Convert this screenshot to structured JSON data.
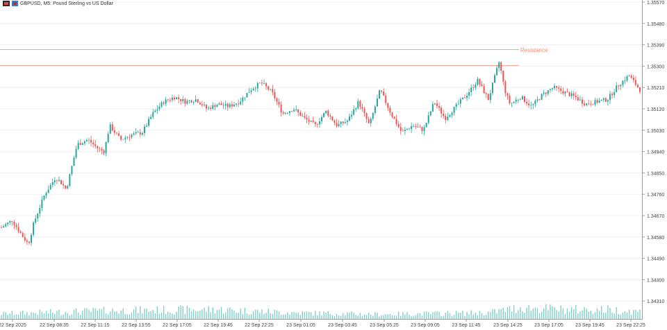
{
  "header": {
    "symbol": "GBPUSD",
    "timeframe": "M5",
    "description": "Pound Sterling vs US Dollar",
    "full_title": "GBPUSD, M5:  Pound Sterling vs US Dollar"
  },
  "annotation": {
    "text": "Resistance",
    "color": "#f08a78"
  },
  "colors": {
    "bull": "#26a69a",
    "bear": "#ef5350",
    "volume": "#7fd1c8",
    "grid": "#efefef",
    "resistance": "#f4a89a"
  },
  "chart_data": {
    "type": "candlestick",
    "symbol": "GBPUSD",
    "timeframe": "M5",
    "y_axis": {
      "range": [
        1.3423,
        1.3557
      ],
      "tick_labels": [
        "1.35570",
        "1.35480",
        "1.35390",
        "1.35300",
        "1.35210",
        "1.35120",
        "1.35030",
        "1.34940",
        "1.34850",
        "1.34760",
        "1.34670",
        "1.34580",
        "1.34490",
        "1.34400",
        "1.34310"
      ]
    },
    "x_axis": {
      "tick_labels": [
        "22 Sep 2025",
        "22 Sep 08:35",
        "22 Sep 11:15",
        "22 Sep 13:55",
        "22 Sep 17:05",
        "22 Sep 19:45",
        "22 Sep 22:25",
        "23 Sep 01:05",
        "23 Sep 03:45",
        "23 Sep 05:25",
        "23 Sep 09:05",
        "23 Sep 11:45",
        "23 Sep 14:25",
        "23 Sep 17:05",
        "23 Sep 19:45",
        "23 Sep 22:25"
      ]
    },
    "resistance_levels": [
      1.3537,
      1.35305
    ],
    "price_path": [
      [
        0,
        1.3462
      ],
      [
        1,
        1.3465
      ],
      [
        2,
        1.3458
      ],
      [
        2.5,
        1.3455
      ],
      [
        3,
        1.3464
      ],
      [
        4,
        1.3476
      ],
      [
        5,
        1.3483
      ],
      [
        5.5,
        1.3481
      ],
      [
        6,
        1.3478
      ],
      [
        7,
        1.3497
      ],
      [
        8,
        1.3499
      ],
      [
        9,
        1.3495
      ],
      [
        9.5,
        1.3494
      ],
      [
        10,
        1.3505
      ],
      [
        11,
        1.3499
      ],
      [
        12,
        1.3501
      ],
      [
        13,
        1.3502
      ],
      [
        14,
        1.351
      ],
      [
        15,
        1.3515
      ],
      [
        16,
        1.3517
      ],
      [
        17,
        1.3515
      ],
      [
        18,
        1.3516
      ],
      [
        19,
        1.3512
      ],
      [
        20,
        1.3514
      ],
      [
        21,
        1.3513
      ],
      [
        22,
        1.3515
      ],
      [
        23,
        1.352
      ],
      [
        24,
        1.3523
      ],
      [
        25,
        1.3519
      ],
      [
        26,
        1.351
      ],
      [
        27,
        1.3512
      ],
      [
        28,
        1.3508
      ],
      [
        29,
        1.3505
      ],
      [
        30,
        1.3511
      ],
      [
        31,
        1.3505
      ],
      [
        32,
        1.3507
      ],
      [
        33,
        1.3515
      ],
      [
        34,
        1.3505
      ],
      [
        35,
        1.352
      ],
      [
        36,
        1.351
      ],
      [
        37,
        1.3502
      ],
      [
        38,
        1.3505
      ],
      [
        39,
        1.3503
      ],
      [
        40,
        1.3515
      ],
      [
        41,
        1.3508
      ],
      [
        42,
        1.3513
      ],
      [
        43,
        1.3518
      ],
      [
        44,
        1.3524
      ],
      [
        45,
        1.3516
      ],
      [
        46,
        1.3532
      ],
      [
        46.5,
        1.352
      ],
      [
        47,
        1.3514
      ],
      [
        48,
        1.3517
      ],
      [
        49,
        1.3513
      ],
      [
        50,
        1.3518
      ],
      [
        51,
        1.3521
      ],
      [
        52,
        1.3519
      ],
      [
        53,
        1.3517
      ],
      [
        54,
        1.3514
      ],
      [
        55,
        1.3515
      ],
      [
        56,
        1.3516
      ],
      [
        57,
        1.3522
      ],
      [
        58,
        1.3526
      ],
      [
        59,
        1.352
      ]
    ],
    "volume_relative_profile": [
      [
        0,
        0.25
      ],
      [
        10,
        0.4
      ],
      [
        20,
        0.45
      ],
      [
        27,
        0.3
      ],
      [
        35,
        0.22
      ],
      [
        45,
        0.3
      ],
      [
        48,
        0.55
      ],
      [
        52,
        0.45
      ],
      [
        56,
        0.45
      ],
      [
        59,
        0.35
      ]
    ]
  }
}
